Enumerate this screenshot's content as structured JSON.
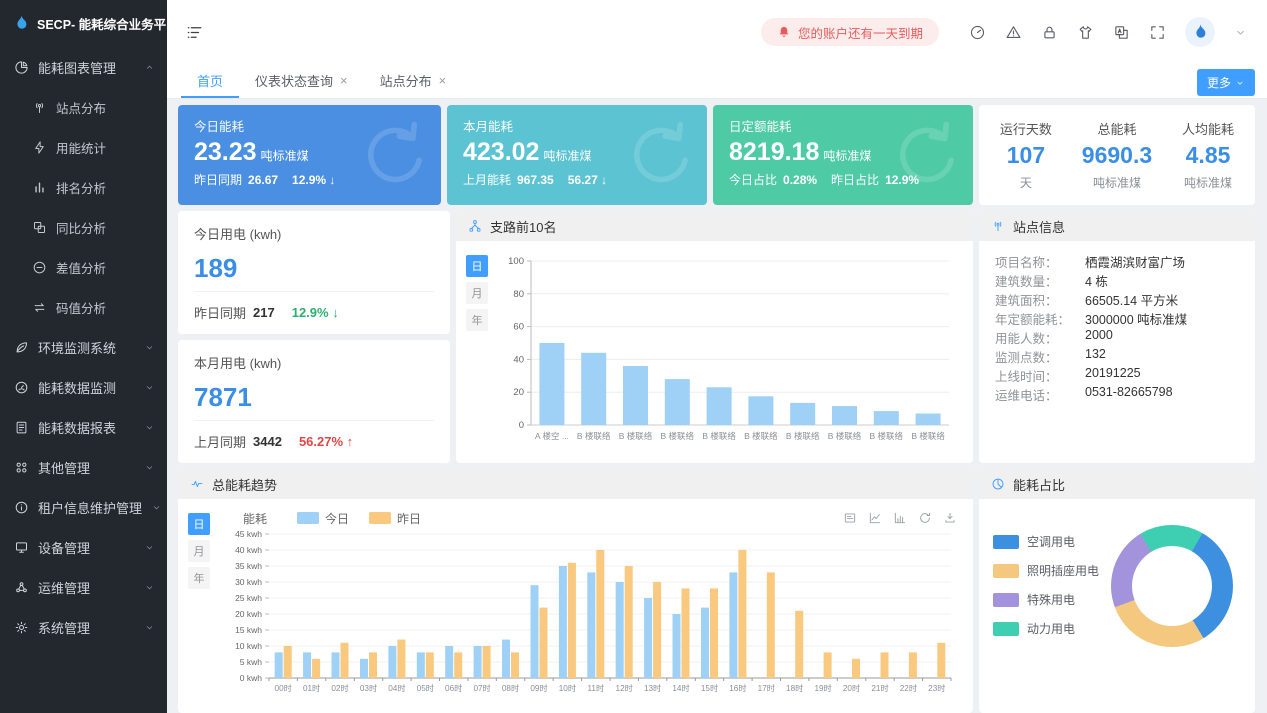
{
  "app": {
    "title": "SECP- 能耗综合业务平台"
  },
  "topbar": {
    "notice": {
      "text": "您的账户还有一天到期"
    },
    "icon_names": [
      "gauge-icon",
      "alert-triangle-icon",
      "lock-icon",
      "theme-tshirt-icon",
      "translate-icon",
      "fullscreen-icon",
      "avatar-flame-icon",
      "user-menu-chevron-icon"
    ]
  },
  "tabs": {
    "items": [
      {
        "label": "首页",
        "active": true,
        "closable": false
      },
      {
        "label": "仪表状态查询",
        "active": false,
        "closable": true
      },
      {
        "label": "站点分布",
        "active": false,
        "closable": true
      }
    ],
    "more_button": "更多"
  },
  "sidebar": {
    "items": [
      {
        "label": "能耗图表管理",
        "icon": "pie-chart-icon",
        "state": "expanded",
        "children": [
          {
            "label": "站点分布",
            "icon": "antenna-icon"
          },
          {
            "label": "用能统计",
            "icon": "lightning-icon"
          },
          {
            "label": "排名分析",
            "icon": "ranking-icon"
          },
          {
            "label": "同比分析",
            "icon": "compare-icon"
          },
          {
            "label": "差值分析",
            "icon": "minus-circle-icon"
          },
          {
            "label": "码值分析",
            "icon": "swap-arrows-icon"
          }
        ]
      },
      {
        "label": "环境监测系统",
        "icon": "leaf-icon",
        "state": "collapsed"
      },
      {
        "label": "能耗数据监测",
        "icon": "monitor-gauge-icon",
        "state": "collapsed"
      },
      {
        "label": "能耗数据报表",
        "icon": "report-icon",
        "state": "collapsed"
      },
      {
        "label": "其他管理",
        "icon": "grid-icon",
        "state": "collapsed"
      },
      {
        "label": "租户信息维护管理",
        "icon": "info-circle-icon",
        "state": "collapsed"
      },
      {
        "label": "设备管理",
        "icon": "device-icon",
        "state": "collapsed"
      },
      {
        "label": "运维管理",
        "icon": "ops-icon",
        "state": "collapsed"
      },
      {
        "label": "系统管理",
        "icon": "gear-icon",
        "state": "collapsed"
      }
    ]
  },
  "stat_cards": [
    {
      "title": "今日能耗",
      "value": "23.23",
      "unit": "吨标准煤",
      "color": "#4a8fe2",
      "footer": [
        {
          "label": "昨日同期",
          "value": "26.67"
        },
        {
          "label": "",
          "value": "12.9%",
          "arrow": "↓"
        }
      ]
    },
    {
      "title": "本月能耗",
      "value": "423.02",
      "unit": "吨标准煤",
      "color": "#5bc3d2",
      "footer": [
        {
          "label": "上月能耗",
          "value": "967.35"
        },
        {
          "label": "",
          "value": "56.27",
          "arrow": "↓"
        }
      ]
    },
    {
      "title": "日定额能耗",
      "value": "8219.18",
      "unit": "吨标准煤",
      "color": "#4ecba4",
      "footer": [
        {
          "label": "今日占比",
          "value": "0.28%"
        },
        {
          "label": "昨日占比",
          "value": "12.9%"
        }
      ]
    }
  ],
  "summary_card": {
    "cols": [
      {
        "label": "运行天数",
        "value": "107",
        "unit": "天"
      },
      {
        "label": "总能耗",
        "value": "9690.3",
        "unit": "吨标准煤"
      },
      {
        "label": "人均能耗",
        "value": "4.85",
        "unit": "吨标准煤"
      }
    ]
  },
  "usage_cards": [
    {
      "title": "今日用电 (kwh)",
      "value": "189",
      "compare_label": "昨日同期",
      "compare_value": "217",
      "percent": "12.9%",
      "arrow": "↓",
      "trend": "down"
    },
    {
      "title": "本月用电 (kwh)",
      "value": "7871",
      "compare_label": "上月同期",
      "compare_value": "3442",
      "percent": "56.27%",
      "arrow": "↑",
      "trend": "up"
    }
  ],
  "branch_panel": {
    "title": "支路前10名",
    "icon": "share-nodes-icon",
    "toggles": [
      "日",
      "月",
      "年"
    ],
    "active_toggle": "日"
  },
  "site_info": {
    "title": "站点信息",
    "icon": "antenna-icon",
    "rows": [
      {
        "label": "项目名称：",
        "value": "栖霞湖滨财富广场"
      },
      {
        "label": "建筑数量：",
        "value": "4 栋"
      },
      {
        "label": "建筑面积：",
        "value": "66505.14 平方米"
      },
      {
        "label": "年定额能耗：",
        "value": "3000000 吨标准煤"
      },
      {
        "label": "用能人数：",
        "value": "2000"
      },
      {
        "label": "监测点数：",
        "value": "132"
      },
      {
        "label": "上线时间：",
        "value": "20191225"
      },
      {
        "label": "运维电话：",
        "value": "0531-82665798"
      }
    ]
  },
  "trend_panel": {
    "title": "总能耗趋势",
    "icon": "pulse-icon",
    "toggles": [
      "日",
      "月",
      "年"
    ],
    "active_toggle": "日",
    "axis_name": "能耗",
    "toolbox": [
      "data-view-icon",
      "line-chart-icon",
      "bar-chart-icon",
      "refresh-icon",
      "download-icon"
    ]
  },
  "pie_panel": {
    "title": "能耗占比",
    "icon": "pie-clock-icon"
  },
  "chart_data": [
    {
      "id": "branch_top10",
      "type": "bar",
      "title": "支路前10名",
      "categories": [
        "A 楼空 ...",
        "B 楼联络",
        "B 楼联络",
        "B 楼联络",
        "B 楼联络",
        "B 楼联络",
        "B 楼联络",
        "B 楼联络",
        "B 楼联络",
        "B 楼联络"
      ],
      "values": [
        50,
        44,
        36,
        28,
        23,
        17.5,
        13.5,
        11.5,
        8.5,
        7
      ],
      "ylim": [
        0,
        100
      ],
      "yticks": [
        0,
        20,
        40,
        60,
        80,
        100
      ],
      "bar_color": "#9fd0f5",
      "grid": true,
      "xlabel": "",
      "ylabel": ""
    },
    {
      "id": "energy_trend",
      "type": "bar",
      "title": "总能耗趋势",
      "ylabel": "能耗",
      "unit": "kwh",
      "categories": [
        "00时",
        "01时",
        "02时",
        "03时",
        "04时",
        "05时",
        "06时",
        "07时",
        "08时",
        "09时",
        "10时",
        "11时",
        "12时",
        "13时",
        "14时",
        "15时",
        "16时",
        "17时",
        "18时",
        "19时",
        "20时",
        "21时",
        "22时",
        "23时"
      ],
      "series": [
        {
          "name": "今日",
          "color": "#9fd0f5",
          "values": [
            8,
            8,
            8,
            6,
            10,
            8,
            10,
            10,
            12,
            29,
            35,
            33,
            30,
            25,
            20,
            22,
            33,
            null,
            null,
            null,
            null,
            null,
            null,
            null
          ]
        },
        {
          "name": "昨日",
          "color": "#f8c97e",
          "values": [
            10,
            6,
            11,
            8,
            12,
            8,
            8,
            10,
            8,
            22,
            36,
            40,
            35,
            30,
            28,
            28,
            40,
            33,
            21,
            8,
            6,
            8,
            8,
            11
          ]
        }
      ],
      "ylim": [
        0,
        45
      ],
      "ytick_step": 5,
      "grid": true,
      "legend_position": "top"
    },
    {
      "id": "energy_share",
      "type": "pie",
      "title": "能耗占比",
      "donut": true,
      "start_angle_deg": 30,
      "slices": [
        {
          "name": "空调用电",
          "value": 33,
          "color": "#3d8fe0"
        },
        {
          "name": "照明插座用电",
          "value": 28,
          "color": "#f5c87f"
        },
        {
          "name": "特殊用电",
          "value": 22,
          "color": "#a392dc"
        },
        {
          "name": "动力用电",
          "value": 17,
          "color": "#3ecfb2"
        }
      ],
      "legend_position": "left"
    }
  ]
}
